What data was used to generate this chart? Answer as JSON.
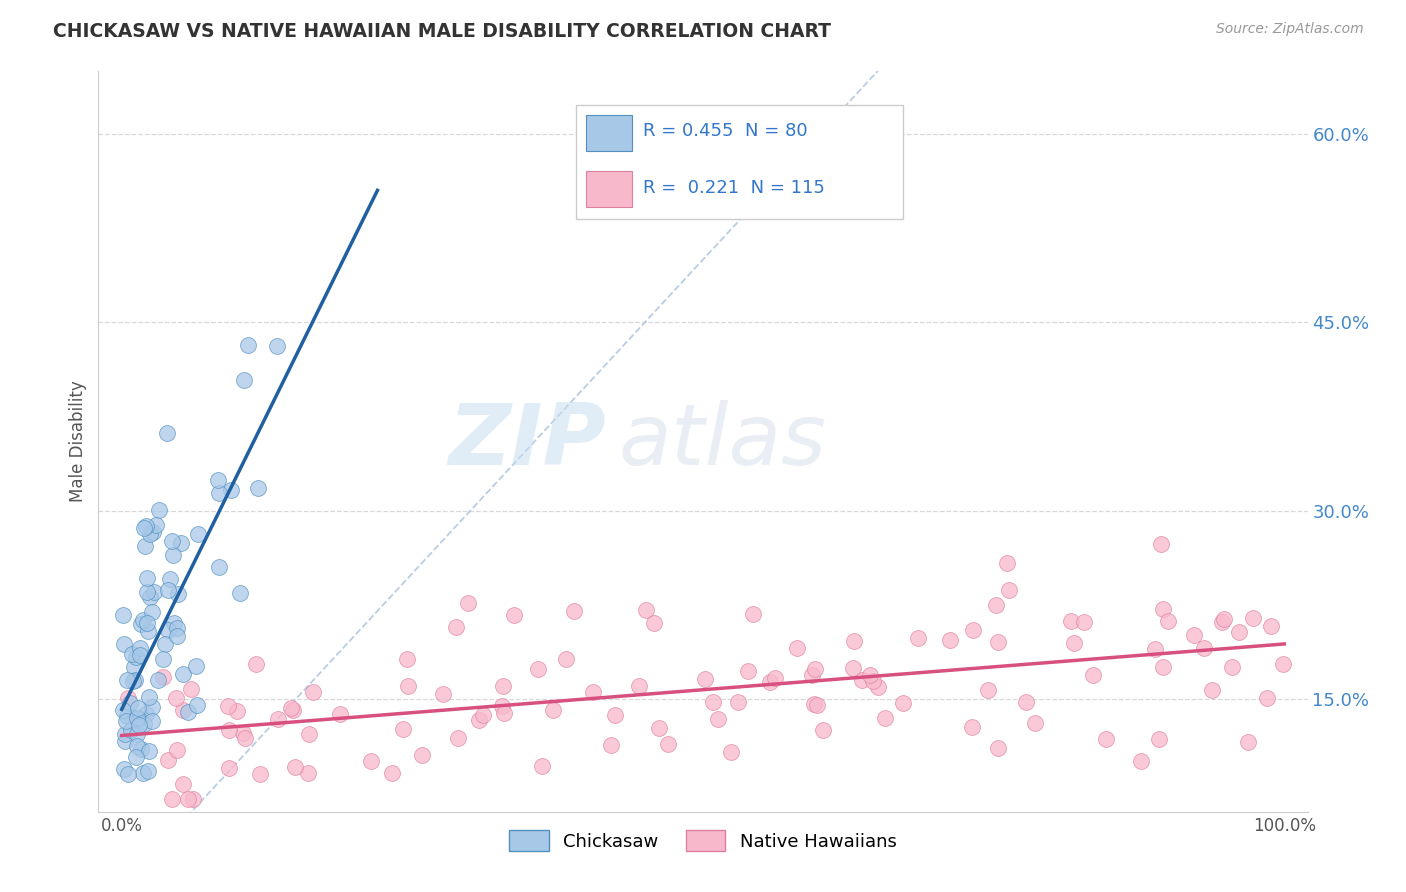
{
  "title": "CHICKASAW VS NATIVE HAWAIIAN MALE DISABILITY CORRELATION CHART",
  "source": "Source: ZipAtlas.com",
  "ylabel": "Male Disability",
  "xlim": [
    -0.02,
    1.02
  ],
  "ylim": [
    0.06,
    0.65
  ],
  "x_ticks": [
    0.0,
    0.1,
    0.2,
    0.3,
    0.4,
    0.5,
    0.6,
    0.7,
    0.8,
    0.9,
    1.0
  ],
  "x_tick_labels": [
    "0.0%",
    "",
    "",
    "",
    "",
    "",
    "",
    "",
    "",
    "",
    "100.0%"
  ],
  "y_ticks": [
    0.15,
    0.3,
    0.45,
    0.6
  ],
  "y_tick_labels": [
    "15.0%",
    "30.0%",
    "45.0%",
    "60.0%"
  ],
  "chickasaw_color": "#a8c8e8",
  "chickasaw_edge_color": "#5090c0",
  "chickasaw_line_color": "#2060a0",
  "native_hawaiian_color": "#f8b8cc",
  "native_hawaiian_edge_color": "#e080a0",
  "native_hawaiian_line_color": "#d85080",
  "trend_line_color": "#b0c8e0",
  "R_chickasaw": 0.455,
  "N_chickasaw": 80,
  "R_native_hawaiian": 0.221,
  "N_native_hawaiian": 115,
  "legend_label_chickasaw": "Chickasaw",
  "legend_label_native_hawaiian": "Native Hawaiians",
  "watermark_zip": "ZIP",
  "watermark_atlas": "atlas",
  "background_color": "#ffffff",
  "grid_color": "#d8d8d8"
}
